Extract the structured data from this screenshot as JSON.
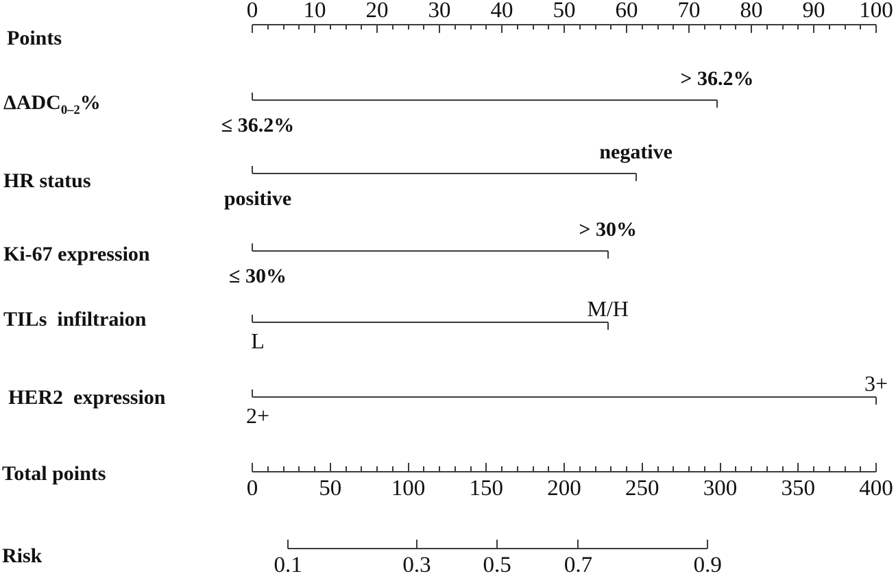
{
  "colors": {
    "background": "#ffffff",
    "line": "#3b3b3b",
    "text": "#111111"
  },
  "chart_data": {
    "type": "nomogram",
    "points_axis": {
      "label": "Points",
      "min": 0,
      "max": 100,
      "major_step": 10,
      "minor_step": 2.5,
      "tick_labels": [
        "0",
        "10",
        "20",
        "30",
        "40",
        "50",
        "60",
        "70",
        "80",
        "90",
        "100"
      ]
    },
    "predictors": [
      {
        "label_main": "ΔADC",
        "label_sub": "0–2",
        "label_suffix": "%",
        "low": {
          "label": "≤ 36.2%",
          "points": 0
        },
        "high": {
          "label": "> 36.2%",
          "points": 74.5
        },
        "bold_values": true
      },
      {
        "label_main": "HR status",
        "label_sub": "",
        "label_suffix": "",
        "low": {
          "label": "positive",
          "points": 0
        },
        "high": {
          "label": "negative",
          "points": 61.5
        },
        "bold_values": true
      },
      {
        "label_main": "Ki-67 expression",
        "label_sub": "",
        "label_suffix": "",
        "low": {
          "label": "≤ 30%",
          "points": 0
        },
        "high": {
          "label": "> 30%",
          "points": 57
        },
        "bold_values": true
      },
      {
        "label_main": "TILs  infiltraion",
        "label_sub": "",
        "label_suffix": "",
        "low": {
          "label": "L",
          "points": 0
        },
        "high": {
          "label": "M/H",
          "points": 57
        },
        "bold_values": false
      },
      {
        "label_main": "HER2  expression",
        "label_sub": "",
        "label_suffix": "",
        "low": {
          "label": "2+",
          "points": 0
        },
        "high": {
          "label": "3+",
          "points": 100
        },
        "bold_values": false
      }
    ],
    "total_points_axis": {
      "label": "Total points",
      "min": 0,
      "max": 400,
      "major_step": 50,
      "minor_step": 10,
      "tick_labels": [
        "0",
        "50",
        "100",
        "150",
        "200",
        "250",
        "300",
        "350",
        "400"
      ]
    },
    "risk_axis": {
      "label": "Risk",
      "ticks": [
        {
          "label": "0.1",
          "total_points": 22.9
        },
        {
          "label": "0.3",
          "total_points": 105.5
        },
        {
          "label": "0.5",
          "total_points": 157
        },
        {
          "label": "0.7",
          "total_points": 209
        },
        {
          "label": "0.9",
          "total_points": 292
        }
      ]
    }
  }
}
